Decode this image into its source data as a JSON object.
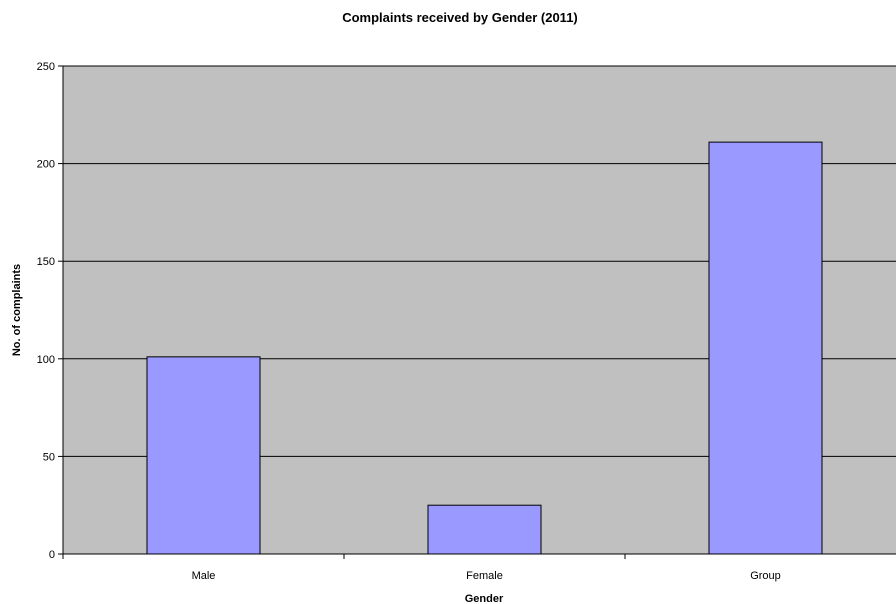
{
  "chart_data": {
    "type": "bar",
    "title": "Complaints received by Gender (2011)",
    "xlabel": "Gender",
    "ylabel": "No. of complaints",
    "categories": [
      "Male",
      "Female",
      "Group"
    ],
    "values": [
      101,
      25,
      211
    ],
    "ylim": [
      0,
      250
    ],
    "yticks": [
      "0",
      "50",
      "100",
      "150",
      "200",
      "250"
    ],
    "grid": true,
    "legend": "none",
    "colors": {
      "plot_background": "#c0c0c0",
      "bar_fill": "#9999ff",
      "bar_stroke": "#000000",
      "gridline": "#000000"
    }
  }
}
